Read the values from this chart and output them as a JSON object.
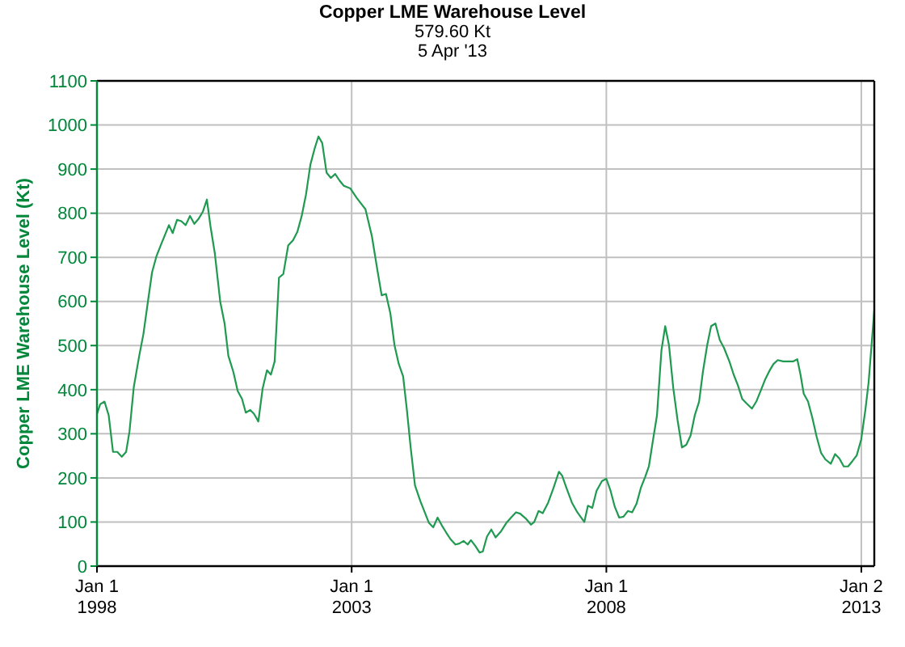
{
  "chart_data": {
    "type": "line",
    "title": "Copper LME Warehouse Level",
    "subtitle": "579.60 Kt\n5 Apr '13",
    "ylabel": "Copper LME Warehouse Level (Kt)",
    "x": [
      "1998-01-01",
      "1998-01-24",
      "1998-02-24",
      "1998-03-26",
      "1998-04-26",
      "1998-05-27",
      "1998-06-28",
      "1998-07-29",
      "1998-08-22",
      "1998-09-22",
      "1998-10-31",
      "1998-11-30",
      "1999-01-01",
      "1999-01-31",
      "1999-03-04",
      "1999-04-03",
      "1999-05-05",
      "1999-06-01",
      "1999-06-28",
      "1999-07-29",
      "1999-08-29",
      "1999-09-29",
      "1999-10-30",
      "1999-11-30",
      "2000-01-01",
      "2000-01-31",
      "2000-02-28",
      "2000-03-25",
      "2000-04-25",
      "2000-06-03",
      "2000-07-04",
      "2000-07-31",
      "2000-09-05",
      "2000-10-06",
      "2000-11-06",
      "2000-12-03",
      "2001-01-04",
      "2001-01-31",
      "2001-03-03",
      "2001-04-03",
      "2001-05-04",
      "2001-06-01",
      "2001-06-28",
      "2001-07-29",
      "2001-08-29",
      "2001-10-03",
      "2001-11-07",
      "2001-12-08",
      "2002-01-08",
      "2002-02-08",
      "2002-03-11",
      "2002-04-11",
      "2002-05-08",
      "2002-06-04",
      "2002-07-05",
      "2002-08-05",
      "2002-09-05",
      "2002-10-06",
      "2002-11-06",
      "2002-12-23",
      "2003-02-08",
      "2003-04-10",
      "2003-05-26",
      "2003-07-04",
      "2003-08-04",
      "2003-09-04",
      "2003-10-05",
      "2003-11-04",
      "2003-12-05",
      "2004-01-05",
      "2004-02-01",
      "2004-02-28",
      "2004-03-30",
      "2004-05-08",
      "2004-06-08",
      "2004-07-08",
      "2004-08-08",
      "2004-09-08",
      "2004-10-09",
      "2004-11-09",
      "2004-12-10",
      "2005-01-14",
      "2005-02-10",
      "2005-03-13",
      "2005-04-12",
      "2005-05-05",
      "2005-06-05",
      "2005-07-06",
      "2005-07-29",
      "2005-08-28",
      "2005-09-28",
      "2005-10-29",
      "2005-12-07",
      "2006-01-14",
      "2006-02-22",
      "2006-03-24",
      "2006-04-23",
      "2006-06-02",
      "2006-07-10",
      "2006-08-02",
      "2006-09-02",
      "2006-10-02",
      "2006-11-10",
      "2006-12-18",
      "2007-01-26",
      "2007-02-18",
      "2007-03-21",
      "2007-04-29",
      "2007-06-07",
      "2007-07-27",
      "2007-08-22",
      "2007-09-22",
      "2007-10-23",
      "2007-12-01",
      "2008-01-01",
      "2008-01-31",
      "2008-03-02",
      "2008-04-02",
      "2008-05-03",
      "2008-06-03",
      "2008-07-04",
      "2008-08-04",
      "2008-09-04",
      "2008-10-05",
      "2008-11-01",
      "2008-11-28",
      "2008-12-29",
      "2009-01-30",
      "2009-02-26",
      "2009-03-25",
      "2009-04-25",
      "2009-05-26",
      "2009-06-26",
      "2009-07-27",
      "2009-08-27",
      "2009-09-26",
      "2009-10-27",
      "2009-11-23",
      "2009-12-24",
      "2010-01-21",
      "2010-02-21",
      "2010-03-24",
      "2010-04-23",
      "2010-06-01",
      "2010-07-02",
      "2010-08-02",
      "2010-09-01",
      "2010-10-02",
      "2010-11-10",
      "2010-12-11",
      "2011-01-11",
      "2011-02-11",
      "2011-03-14",
      "2011-04-13",
      "2011-05-14",
      "2011-06-22",
      "2011-07-31",
      "2011-08-31",
      "2011-10-01",
      "2011-10-24",
      "2011-11-16",
      "2011-12-17",
      "2012-01-17",
      "2012-02-17",
      "2012-03-19",
      "2012-04-19",
      "2012-05-28",
      "2012-06-28",
      "2012-07-29",
      "2012-08-29",
      "2012-09-29",
      "2012-10-30",
      "2012-11-30",
      "2013-01-01",
      "2013-01-31",
      "2013-02-23",
      "2013-04-05"
    ],
    "series": [
      {
        "color": "#1f9a50",
        "values": [
          345,
          367,
          373,
          342,
          259,
          259,
          248,
          259,
          305,
          406,
          477,
          526,
          599,
          666,
          703,
          727,
          752,
          773,
          755,
          785,
          782,
          773,
          794,
          776,
          788,
          804,
          831,
          770,
          709,
          599,
          550,
          477,
          440,
          397,
          379,
          348,
          354,
          345,
          328,
          403,
          444,
          434,
          464,
          654,
          662,
          727,
          739,
          758,
          794,
          843,
          910,
          947,
          974,
          959,
          892,
          880,
          889,
          874,
          862,
          856,
          834,
          809,
          748,
          672,
          614,
          617,
          574,
          501,
          458,
          430,
          354,
          269,
          183,
          147,
          122,
          98,
          88,
          110,
          92,
          76,
          61,
          49,
          51,
          57,
          49,
          59,
          46,
          31,
          33,
          67,
          83,
          65,
          79,
          98,
          112,
          122,
          119,
          108,
          94,
          100,
          125,
          120,
          144,
          177,
          214,
          205,
          177,
          144,
          122,
          100,
          137,
          132,
          171,
          193,
          198,
          171,
          134,
          110,
          112,
          125,
          122,
          141,
          177,
          202,
          226,
          281,
          342,
          489,
          544,
          501,
          403,
          330,
          269,
          275,
          296,
          342,
          373,
          440,
          501,
          544,
          550,
          513,
          495,
          464,
          434,
          409,
          379,
          369,
          357,
          373,
          397,
          422,
          442,
          458,
          467,
          464,
          464,
          464,
          469,
          434,
          391,
          373,
          336,
          293,
          257,
          242,
          232,
          254,
          244,
          226,
          226,
          238,
          251,
          287,
          354,
          416,
          580
        ]
      }
    ],
    "xlim": [
      "1998-01-01",
      "2013-04-05"
    ],
    "xticks": [
      {
        "value": "1998-01-01",
        "label": "Jan 1\n1998"
      },
      {
        "value": "2003-01-01",
        "label": "Jan 1\n2003"
      },
      {
        "value": "2008-01-01",
        "label": "Jan 1\n2008"
      },
      {
        "value": "2013-01-02",
        "label": "Jan 2\n2013"
      }
    ],
    "ylim": [
      0,
      1100
    ],
    "yticks": [
      0,
      100,
      200,
      300,
      400,
      500,
      600,
      700,
      800,
      900,
      1000,
      1100
    ],
    "grid": true
  }
}
